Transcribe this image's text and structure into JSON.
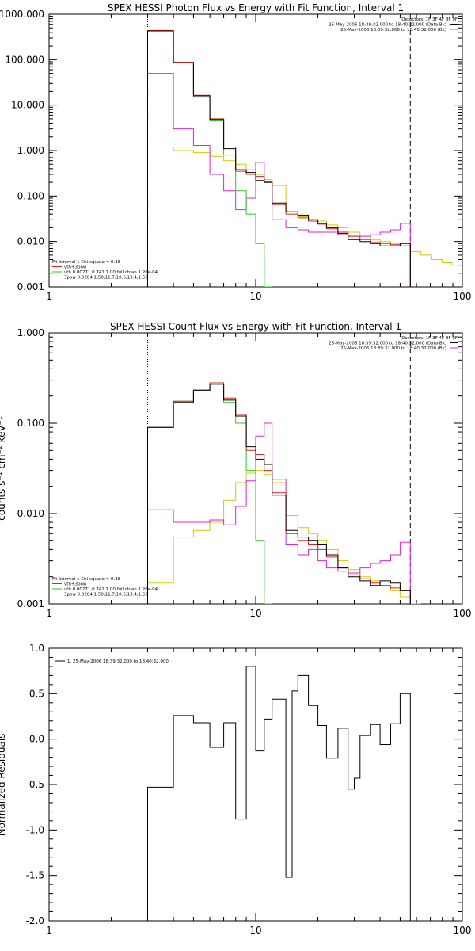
{
  "chart_data": [
    {
      "type": "line",
      "title": "SPEX HESSI Photon Flux vs Energy with Fit Function, Interval 1",
      "xscale": "log",
      "yscale": "log",
      "xlim": [
        1,
        100
      ],
      "ylim": [
        0.001,
        1000
      ],
      "x_ticks": [
        "1",
        "10",
        "100"
      ],
      "y_ticks": [
        "0.001",
        "0.010",
        "0.100",
        "1.000",
        "10.000",
        "100.000",
        "1000.000"
      ],
      "xlabel": "",
      "ylabel": "",
      "energy_edges": [
        3,
        4,
        5,
        6,
        7,
        8,
        9,
        10,
        11,
        12,
        14,
        16,
        18,
        20,
        22,
        25,
        28,
        32,
        36,
        40,
        45,
        50,
        56
      ],
      "series": [
        {
          "name": "",
          "color": "#000000",
          "values": [
            430,
            85,
            16,
            4.8,
            1.1,
            0.38,
            0.33,
            0.22,
            0.2,
            0.07,
            0.045,
            0.038,
            0.03,
            0.025,
            0.02,
            0.015,
            0.011,
            0.01,
            0.009,
            0.008,
            0.008,
            0.009
          ]
        },
        {
          "name": "",
          "color": "#dd2222",
          "values": [
            440,
            88,
            16.5,
            5,
            1.2,
            0.35,
            0.3,
            0.27,
            0.21,
            0.065,
            0.04,
            0.033,
            0.028,
            0.024,
            0.019,
            0.016,
            0.013,
            0.011,
            0.0095,
            0.009,
            0.0085,
            0.008
          ]
        },
        {
          "name": "",
          "color": "#22cc22",
          "values": [
            435,
            85,
            15,
            4.5,
            0.8,
            0.13,
            0.04,
            0.009,
            0.001
          ]
        },
        {
          "name": "",
          "color": "#dd22dd",
          "values": [
            50,
            3,
            1.3,
            0.3,
            0.13,
            0.05,
            0.09,
            0.55,
            0.2,
            0.03,
            0.02,
            0.018,
            0.016,
            0.016,
            0.016,
            0.014,
            0.013,
            0.013,
            0.014,
            0.016,
            0.018,
            0.025
          ]
        }
      ],
      "yellow_curve": {
        "color": "#cccc00",
        "x": [
          3,
          4,
          5,
          6,
          7,
          8,
          9,
          10,
          11,
          12,
          14,
          16,
          18,
          20,
          22,
          25,
          28,
          32,
          36,
          40,
          45,
          50,
          56,
          63,
          71,
          80,
          89,
          100
        ],
        "y": [
          1.2,
          1.0,
          0.9,
          0.75,
          0.6,
          0.5,
          0.38,
          0.3,
          0.23,
          0.17,
          0.045,
          0.035,
          0.03,
          0.028,
          0.023,
          0.02,
          0.016,
          0.013,
          0.011,
          0.01,
          0.009,
          0.008,
          0.006,
          0.005,
          0.004,
          0.0034,
          0.003,
          0.0023
        ]
      },
      "dotted_line_x": 3,
      "dashed_line_x": 56,
      "header_legend": [
        {
          "text": "Detectors: 1F 3F 4F 8F 9F",
          "color": ""
        },
        {
          "text": "25-May-2006 18:39:32.000 to 18:40:32.000 (Data-Bk)",
          "color": "#000000"
        },
        {
          "text": "25-May-2006 18:39:32.000 to 18:40:32.000 (Bk)",
          "color": "#dd22dd"
        }
      ],
      "fit_legend": [
        {
          "text": "Fit Interval 1   Chi-square = 0.38",
          "color": ""
        },
        {
          "text": "vth+3pow",
          "color": "#dd2222"
        },
        {
          "text": "vth 0.00271,0.741,1.00  full chian 1.26e-04",
          "color": "#22cc22"
        },
        {
          "text": "3pow 0.0284,1.50,11.7,10.6,13.4,1.50",
          "color": "#cccc00"
        }
      ]
    },
    {
      "type": "line",
      "title": "SPEX HESSI Count Flux vs Energy with Fit Function, Interval 1",
      "xscale": "log",
      "yscale": "log",
      "xlim": [
        1,
        100
      ],
      "ylim": [
        0.001,
        1
      ],
      "x_ticks": [
        "1",
        "10",
        "100"
      ],
      "y_ticks": [
        "0.001",
        "0.010",
        "0.100",
        "1.000"
      ],
      "xlabel": "",
      "ylabel": "counts s⁻¹ cm⁻² keV⁻¹",
      "energy_edges": [
        3,
        4,
        5,
        6,
        7,
        8,
        9,
        10,
        11,
        12,
        14,
        16,
        18,
        20,
        22,
        25,
        28,
        32,
        36,
        40,
        45,
        50,
        56
      ],
      "series": [
        {
          "name": "",
          "color": "#000000",
          "values": [
            0.09,
            0.17,
            0.23,
            0.27,
            0.18,
            0.12,
            0.055,
            0.04,
            0.035,
            0.016,
            0.0065,
            0.0055,
            0.005,
            0.0045,
            0.0035,
            0.0025,
            0.002,
            0.0018,
            0.0016,
            0.0018,
            0.0017,
            0.0014
          ]
        },
        {
          "name": "",
          "color": "#dd2222",
          "values": [
            0.09,
            0.175,
            0.23,
            0.28,
            0.19,
            0.125,
            0.05,
            0.045,
            0.03,
            0.017,
            0.006,
            0.005,
            0.0045,
            0.004,
            0.0033,
            0.0025,
            0.0021,
            0.0019,
            0.0017,
            0.0016,
            0.0015,
            0.0014
          ]
        },
        {
          "name": "",
          "color": "#22cc22",
          "values": [
            0.09,
            0.175,
            0.235,
            0.27,
            0.17,
            0.1,
            0.03,
            0.005,
            0.001
          ]
        },
        {
          "name": "",
          "color": "#dd22dd",
          "values": [
            0.011,
            0.008,
            0.008,
            0.0085,
            0.0075,
            0.012,
            0.023,
            0.072,
            0.1,
            0.024,
            0.0045,
            0.0035,
            0.004,
            0.003,
            0.0025,
            0.0023,
            0.0022,
            0.0025,
            0.0028,
            0.003,
            0.0035,
            0.0048
          ]
        }
      ],
      "yellow_curve": {
        "color": "#cccc00",
        "x": [
          3,
          4,
          5,
          6,
          7,
          8,
          9,
          10,
          11,
          12,
          14,
          16,
          18,
          20,
          22,
          25,
          28,
          32,
          36,
          40,
          45,
          50,
          56,
          63
        ],
        "y": [
          0.0017,
          0.0055,
          0.0065,
          0.008,
          0.014,
          0.022,
          0.028,
          0.03,
          0.027,
          0.022,
          0.0095,
          0.007,
          0.006,
          0.005,
          0.004,
          0.003,
          0.0024,
          0.002,
          0.0018,
          0.0016,
          0.0014,
          0.0012,
          0.001,
          0.001
        ]
      },
      "dotted_line_x": 3,
      "dashed_line_x": 56,
      "header_legend": [
        {
          "text": "Detectors: 1F 3F 4F 8F 9F",
          "color": ""
        },
        {
          "text": "25-May-2006 18:39:32.000 to 18:40:32.000 (Data-Bk)",
          "color": "#000000"
        },
        {
          "text": "25-May-2006 18:39:32.000 to 18:40:32.000 (Bk)",
          "color": "#dd22dd"
        }
      ],
      "fit_legend": [
        {
          "text": "Fit Interval 1   Chi-square = 0.38",
          "color": ""
        },
        {
          "text": "vth+3pow",
          "color": "#dd2222"
        },
        {
          "text": "vth 0.00271,0.741,1.00  full chian 1.26e-04",
          "color": "#22cc22"
        },
        {
          "text": "3pow 0.0284,1.50,11.7,10.6,13.4,1.50",
          "color": "#cccc00"
        }
      ]
    },
    {
      "type": "line",
      "title": "",
      "xscale": "log",
      "yscale": "linear",
      "xlim": [
        1,
        100
      ],
      "ylim": [
        -2.0,
        1.0
      ],
      "x_ticks": [
        "1",
        "10",
        "100"
      ],
      "y_ticks": [
        "-2.0",
        "-1.5",
        "-1.0",
        "-0.5",
        "0.0",
        "0.5",
        "1.0"
      ],
      "xlabel": "",
      "ylabel": "Normalized Residuals",
      "energy_edges": [
        3,
        4,
        5,
        6,
        7,
        8,
        9,
        10,
        11,
        12,
        14,
        16,
        18,
        20,
        22,
        25,
        28,
        32,
        36,
        40,
        45,
        50,
        56
      ],
      "series": [
        {
          "name": "1. 25-May-2006 18:39:32.000 to 18:40:32.000",
          "color": "#000000",
          "values": [
            -0.53,
            0.26,
            0.18,
            -0.09,
            0.18,
            -0.88,
            0.8,
            -0.13,
            0.22,
            0.44,
            -1.52,
            0.53,
            0.7,
            0.37,
            0.15,
            -0.21,
            0.12,
            -0.55,
            -0.43,
            0.04,
            0.16,
            -0.06,
            0.17,
            0.5
          ]
        }
      ],
      "edges_residual": [
        3,
        4,
        5,
        6,
        7,
        8,
        9,
        10,
        11,
        12,
        14,
        15,
        16,
        18,
        20,
        22,
        25,
        28,
        30,
        32,
        36,
        40,
        45,
        50,
        56
      ],
      "legend": [
        {
          "text": "1. 25-May-2006 18:39:32.000 to 18:40:32.000",
          "color": "#000000"
        }
      ]
    }
  ]
}
